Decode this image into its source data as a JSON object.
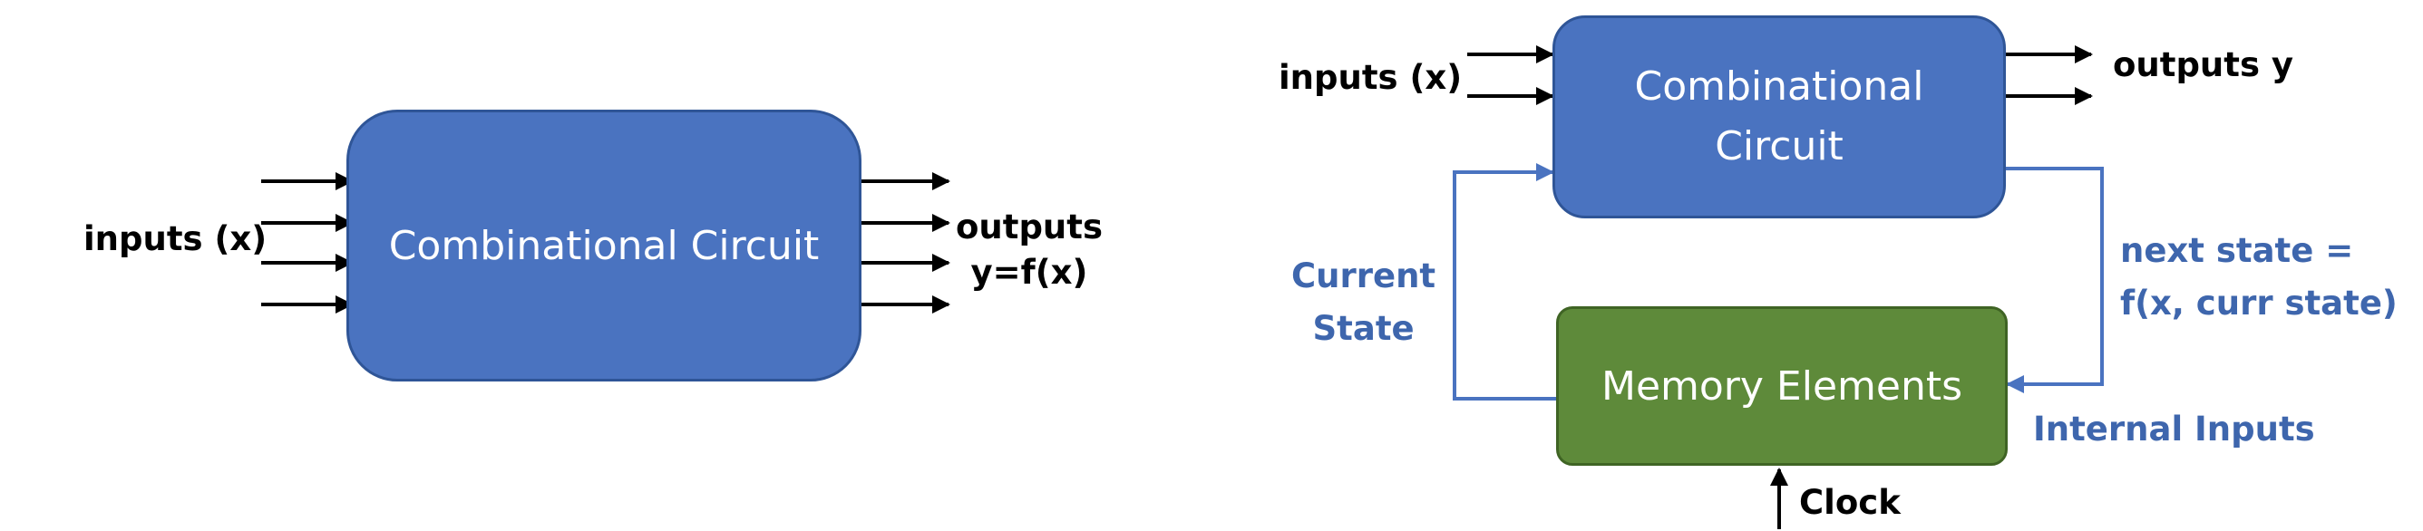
{
  "left_diagram": {
    "block": "Combinational Circuit",
    "inputs_label": "inputs (x)",
    "outputs_label_line1": "outputs",
    "outputs_label_line2": "y=f(x)"
  },
  "right_diagram": {
    "comb_block_line1": "Combinational",
    "comb_block_line2": "Circuit",
    "memory_block": "Memory Elements",
    "inputs_label": "inputs (x)",
    "outputs_label": "outputs y",
    "current_state_line1": "Current",
    "current_state_line2": "State",
    "next_state_line1": "next state =",
    "next_state_line2": "f(x, curr state)",
    "internal_inputs_label": "Internal Inputs",
    "clock_label": "Clock"
  },
  "colors": {
    "block_blue": "#4a73c0",
    "block_green": "#5e8a3a",
    "feedback_line": "#4a73c0",
    "label_blue": "#3e66ad",
    "arrows": "#000000"
  }
}
